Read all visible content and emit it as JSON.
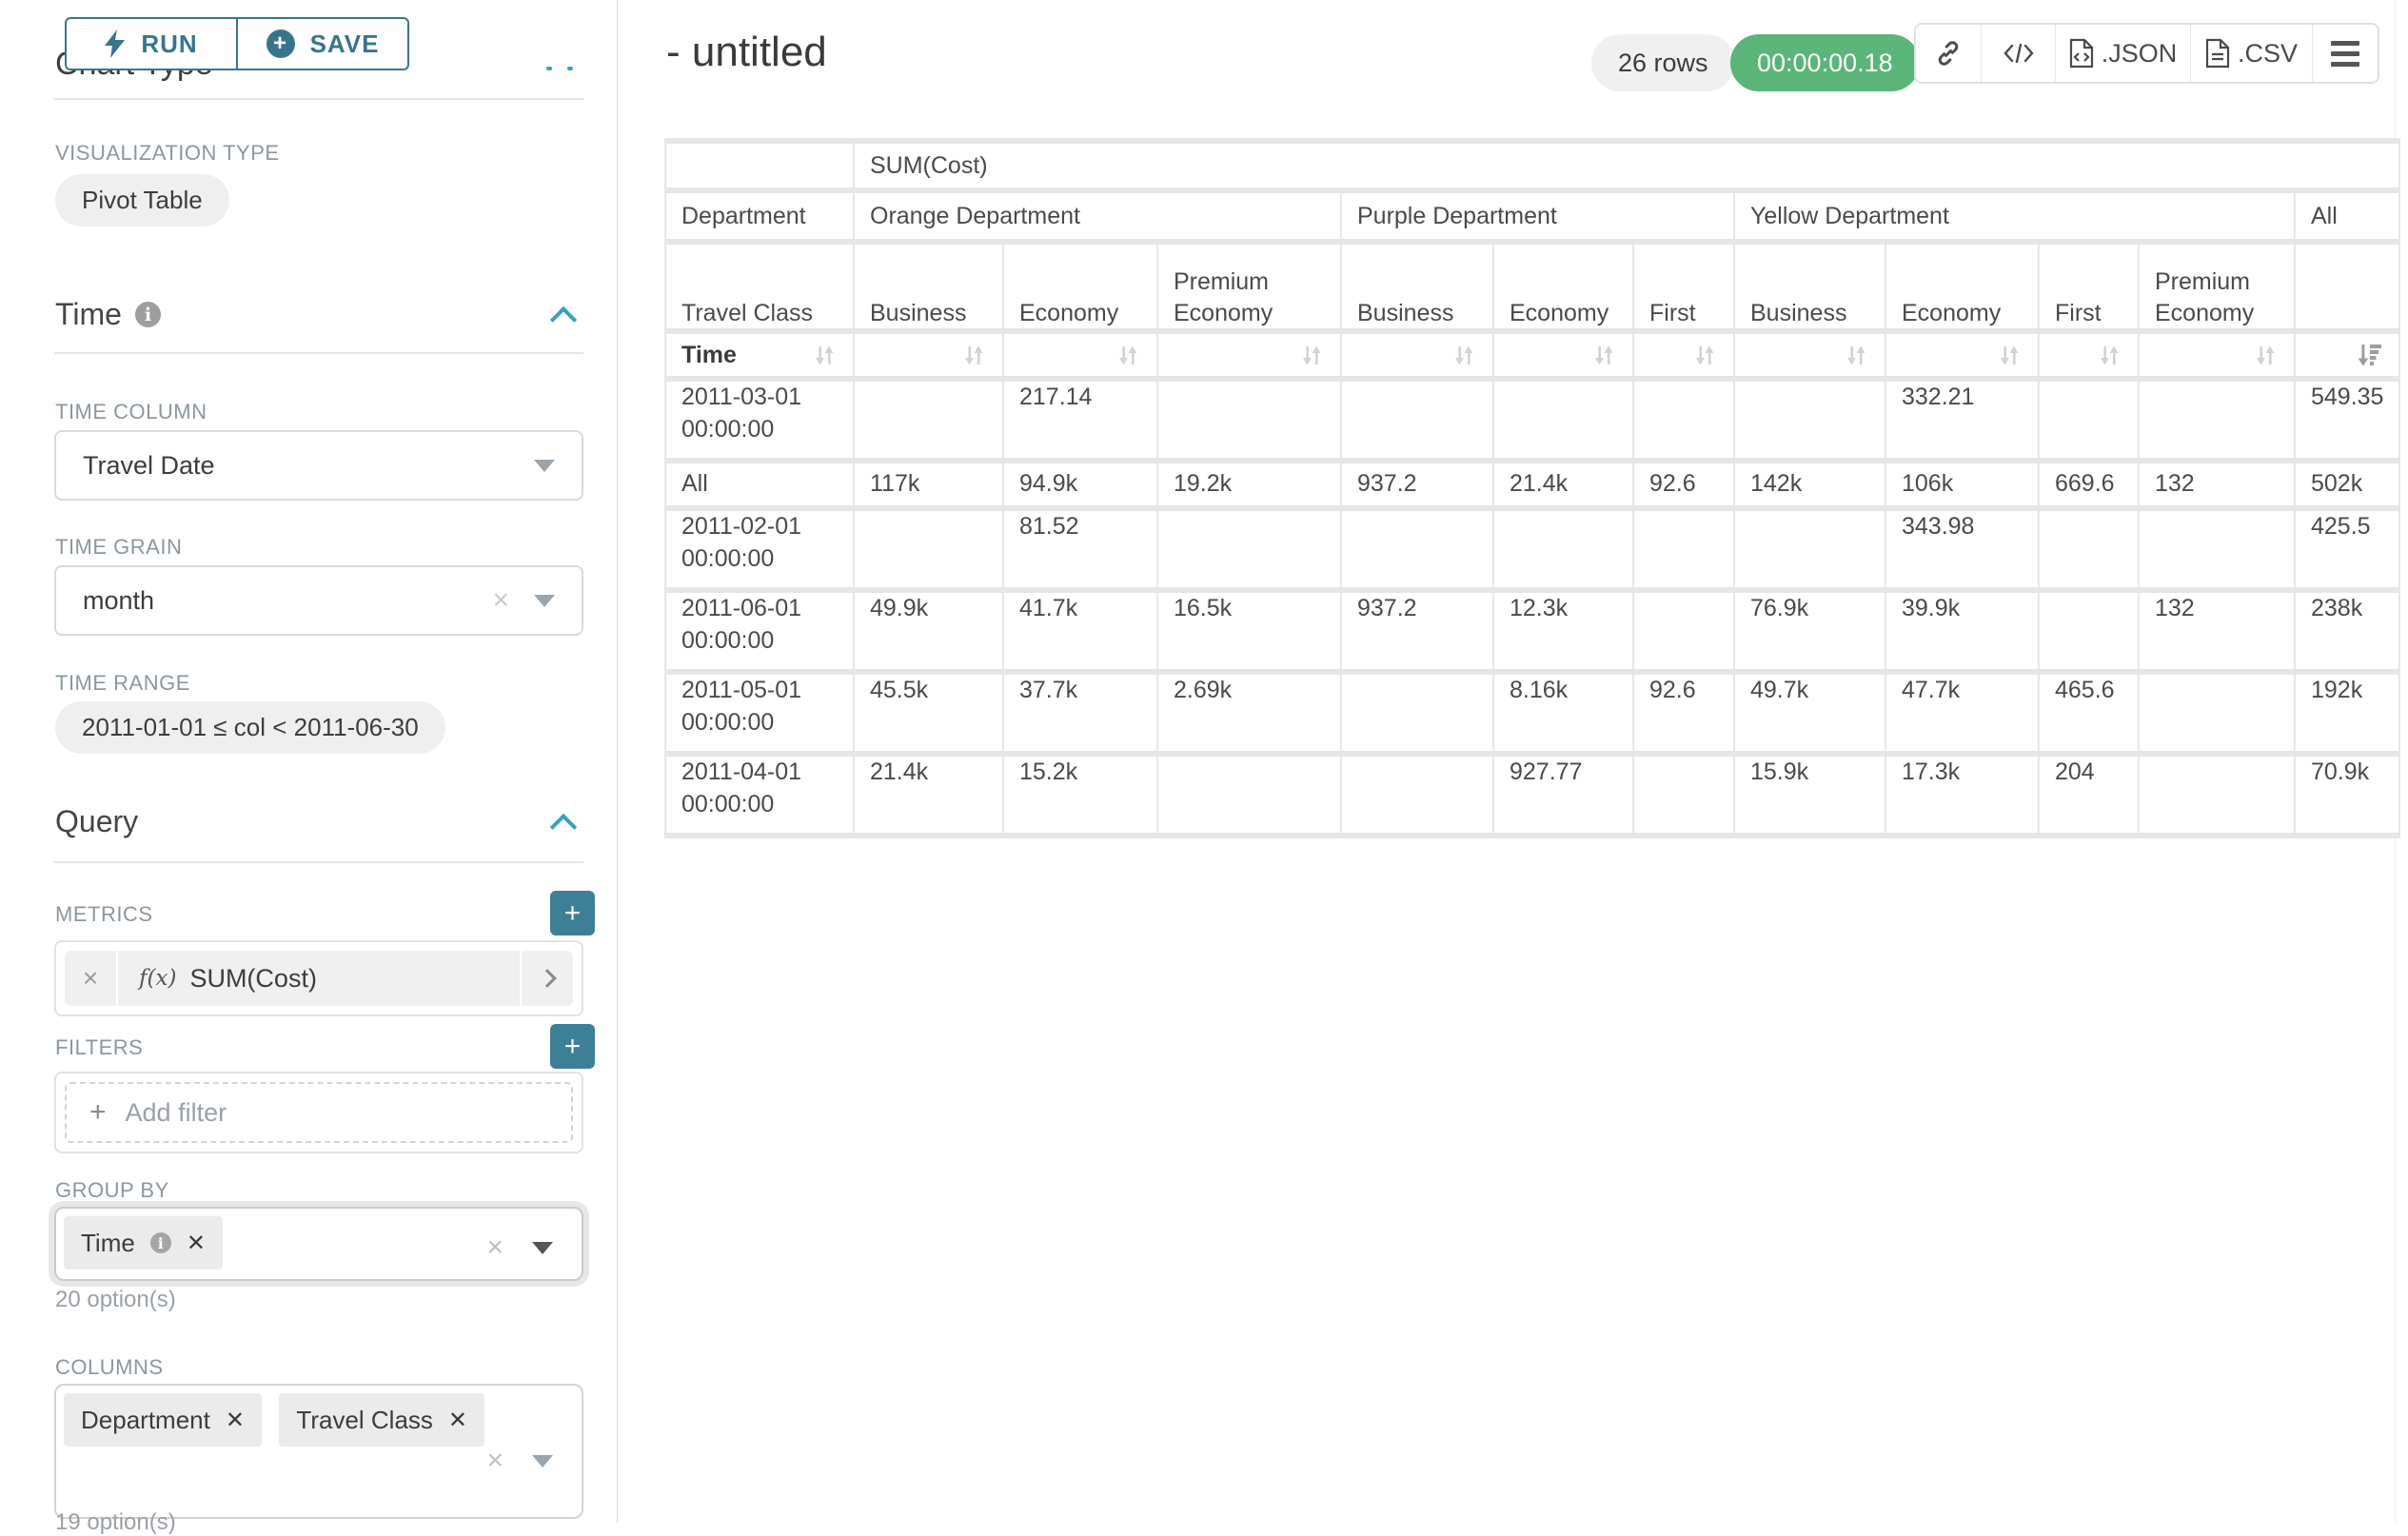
{
  "toolbar": {
    "run_label": "RUN",
    "save_label": "SAVE"
  },
  "sidebar": {
    "chart_type_heading": "Chart Type",
    "visualization_type": {
      "label": "VISUALIZATION TYPE",
      "value": "Pivot Table"
    },
    "time": {
      "title": "Time",
      "column_label": "TIME COLUMN",
      "column_value": "Travel Date",
      "grain_label": "TIME GRAIN",
      "grain_value": "month",
      "range_label": "TIME RANGE",
      "range_value": "2011-01-01 ≤ col < 2011-06-30"
    },
    "query": {
      "title": "Query",
      "metrics_label": "METRICS",
      "metric_fx": "f(x)",
      "metric_name": "SUM(Cost)",
      "filters_label": "FILTERS",
      "add_filter_label": "Add filter",
      "group_by_label": "GROUP BY",
      "group_by_items": [
        "Time"
      ],
      "group_by_hint": "20 option(s)",
      "columns_label": "COLUMNS",
      "columns_items": [
        "Department",
        "Travel Class"
      ],
      "columns_hint": "19 option(s)"
    }
  },
  "header": {
    "title": "- untitled",
    "row_count": "26 rows",
    "query_time": "00:00:00.18",
    "export_json_label": ".JSON",
    "export_csv_label": ".CSV"
  },
  "pivot": {
    "metric_label": "SUM(Cost)",
    "corner": [
      "Department",
      "Travel Class",
      "Time"
    ],
    "groups": [
      {
        "label": "Orange Department",
        "span": 3
      },
      {
        "label": "Purple Department",
        "span": 3
      },
      {
        "label": "Yellow Department",
        "span": 4
      },
      {
        "label": "All",
        "span": 1
      }
    ],
    "subcols": [
      "Business",
      "Economy",
      "Premium Economy",
      "Business",
      "Economy",
      "First",
      "Business",
      "Economy",
      "First",
      "Premium Economy",
      ""
    ],
    "active_sort_column": "All",
    "active_sort_direction": "desc",
    "rows": [
      {
        "label": "2011-03-01 00:00:00",
        "values": [
          "",
          "217.14",
          "",
          "",
          "",
          "",
          "",
          "332.21",
          "",
          "",
          "549.35"
        ]
      },
      {
        "label": "All",
        "values": [
          "117k",
          "94.9k",
          "19.2k",
          "937.2",
          "21.4k",
          "92.6",
          "142k",
          "106k",
          "669.6",
          "132",
          "502k"
        ]
      },
      {
        "label": "2011-02-01 00:00:00",
        "values": [
          "",
          "81.52",
          "",
          "",
          "",
          "",
          "",
          "343.98",
          "",
          "",
          "425.5"
        ]
      },
      {
        "label": "2011-06-01 00:00:00",
        "values": [
          "49.9k",
          "41.7k",
          "16.5k",
          "937.2",
          "12.3k",
          "",
          "76.9k",
          "39.9k",
          "",
          "132",
          "238k"
        ]
      },
      {
        "label": "2011-05-01 00:00:00",
        "values": [
          "45.5k",
          "37.7k",
          "2.69k",
          "",
          "8.16k",
          "92.6",
          "49.7k",
          "47.7k",
          "465.6",
          "",
          "192k"
        ]
      },
      {
        "label": "2011-04-01 00:00:00",
        "values": [
          "21.4k",
          "15.2k",
          "",
          "",
          "927.77",
          "",
          "15.9k",
          "17.3k",
          "204",
          "",
          "70.9k"
        ]
      }
    ]
  }
}
